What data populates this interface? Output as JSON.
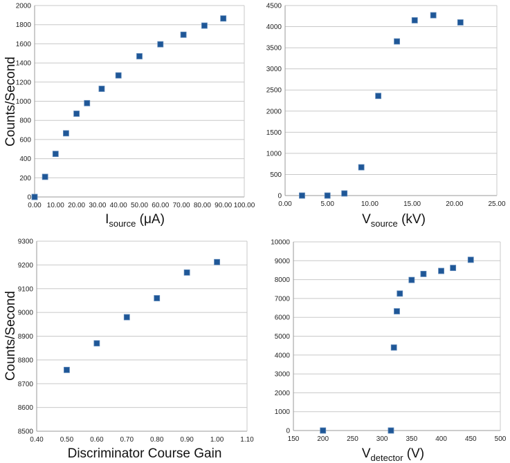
{
  "chart_data": [
    {
      "type": "scatter",
      "xlabel": {
        "main": "I",
        "sub": "source",
        "suffix": " (μA)"
      },
      "ylabel": "Counts/Second",
      "xlim": [
        0,
        100
      ],
      "xstep": 10,
      "xdecimals": 2,
      "ylim": [
        0,
        2000
      ],
      "ystep": 200,
      "ydecimals": 0,
      "grid": "horizontal",
      "marker_color": "#1f5797",
      "x": [
        0,
        5,
        10,
        15,
        20,
        25,
        32,
        40,
        50,
        60,
        71,
        81,
        90
      ],
      "y": [
        0,
        210,
        450,
        665,
        870,
        980,
        1130,
        1270,
        1470,
        1595,
        1695,
        1790,
        1865
      ]
    },
    {
      "type": "scatter",
      "xlabel": {
        "main": "V",
        "sub": "source",
        "suffix": " (kV)"
      },
      "ylabel": "",
      "xlim": [
        0,
        25
      ],
      "xstep": 5,
      "xdecimals": 2,
      "ylim": [
        0,
        4500
      ],
      "ystep": 500,
      "ydecimals": 0,
      "grid": "horizontal",
      "marker_color": "#1f5797",
      "x": [
        2,
        5,
        7,
        9,
        11,
        13.2,
        15.3,
        17.5,
        20.7
      ],
      "y": [
        0,
        0,
        50,
        670,
        2360,
        3650,
        4150,
        4270,
        4100
      ]
    },
    {
      "type": "scatter",
      "xlabel": {
        "main": "Discriminator Course Gain",
        "sub": "",
        "suffix": ""
      },
      "ylabel": "Counts/Second",
      "xlim": [
        0.4,
        1.1
      ],
      "xstep": 0.1,
      "xdecimals": 2,
      "ylim": [
        8500,
        9300
      ],
      "ystep": 100,
      "ydecimals": 0,
      "grid": "horizontal",
      "marker_color": "#1f5797",
      "x": [
        0.5,
        0.6,
        0.7,
        0.8,
        0.9,
        1.0
      ],
      "y": [
        8758,
        8870,
        8980,
        9060,
        9168,
        9212
      ]
    },
    {
      "type": "scatter",
      "xlabel": {
        "main": "V",
        "sub": "detector",
        "suffix": " (V)"
      },
      "ylabel": "",
      "xlim": [
        150,
        500
      ],
      "xstep": 50,
      "xdecimals": 0,
      "ylim": [
        0,
        10000
      ],
      "ystep": 1000,
      "ydecimals": 0,
      "grid": "horizontal",
      "marker_color": "#1f5797",
      "x": [
        200,
        315,
        320,
        325,
        330,
        350,
        370,
        400,
        420,
        450
      ],
      "y": [
        0,
        0,
        4400,
        6320,
        7260,
        7980,
        8300,
        8460,
        8620,
        9050
      ]
    }
  ]
}
